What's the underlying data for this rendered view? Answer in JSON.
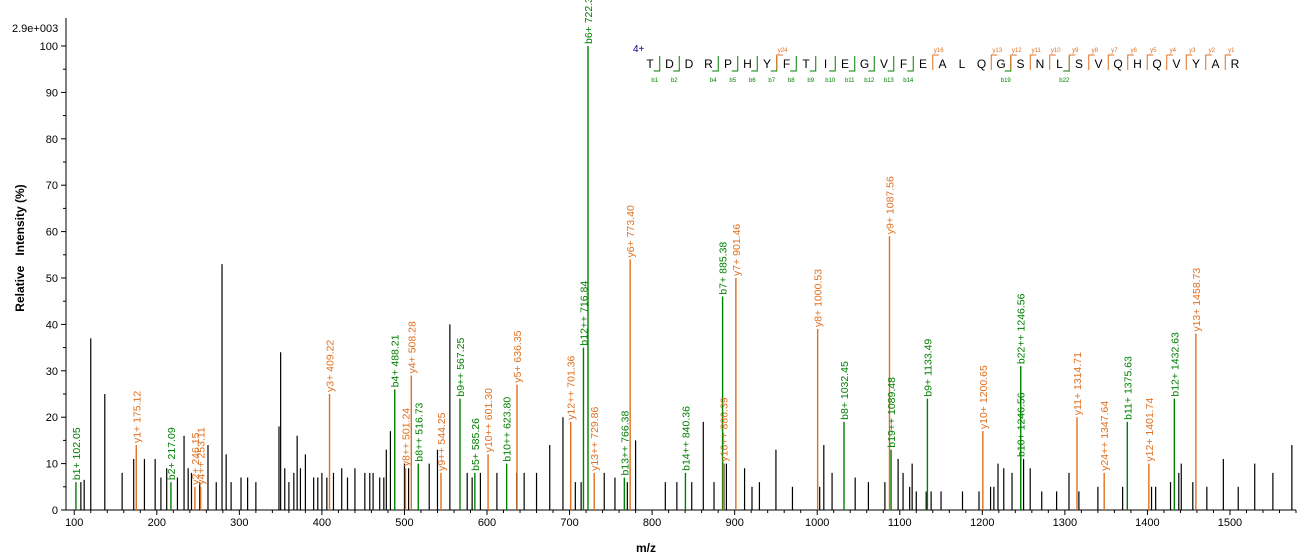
{
  "colors": {
    "b_ion": "#008000",
    "y_ion": "#e07020",
    "unassigned": "#000000",
    "axis": "#000000",
    "charge": "#000080"
  },
  "max_intensity_label": "2.9e+003",
  "chart_data": {
    "type": "bar",
    "xlabel": "m/z",
    "ylabel": "Relative   Intensity (%)",
    "xlim": [
      90,
      1580
    ],
    "ylim": [
      0,
      102
    ],
    "x_ticks": [
      100,
      200,
      300,
      400,
      500,
      600,
      700,
      800,
      900,
      1000,
      1100,
      1200,
      1300,
      1400,
      1500
    ],
    "y_ticks": [
      0,
      10,
      20,
      30,
      40,
      50,
      60,
      70,
      80,
      90,
      100
    ],
    "grid": false,
    "peaks_unassigned": [
      [
        108,
        6
      ],
      [
        112,
        6.5
      ],
      [
        120,
        37
      ],
      [
        137,
        25
      ],
      [
        158,
        8
      ],
      [
        172,
        11
      ],
      [
        185,
        11
      ],
      [
        198,
        11
      ],
      [
        205,
        7
      ],
      [
        212,
        9
      ],
      [
        225,
        7
      ],
      [
        233,
        16
      ],
      [
        238,
        9
      ],
      [
        242,
        8
      ],
      [
        252,
        6
      ],
      [
        262,
        14
      ],
      [
        272,
        6
      ],
      [
        279,
        53
      ],
      [
        284,
        12
      ],
      [
        290,
        6
      ],
      [
        302,
        7
      ],
      [
        310,
        7
      ],
      [
        320,
        6
      ],
      [
        348,
        18
      ],
      [
        350,
        34
      ],
      [
        355,
        9
      ],
      [
        360,
        6
      ],
      [
        366,
        8
      ],
      [
        370,
        16
      ],
      [
        374,
        9
      ],
      [
        380,
        12
      ],
      [
        390,
        7
      ],
      [
        395,
        7
      ],
      [
        400,
        8
      ],
      [
        406,
        7
      ],
      [
        414,
        8
      ],
      [
        424,
        9
      ],
      [
        431,
        7
      ],
      [
        440,
        9
      ],
      [
        452,
        8
      ],
      [
        458,
        8
      ],
      [
        462,
        8
      ],
      [
        470,
        7
      ],
      [
        475,
        7
      ],
      [
        478,
        13
      ],
      [
        483,
        17
      ],
      [
        500,
        10
      ],
      [
        505,
        9
      ],
      [
        530,
        10
      ],
      [
        540,
        13
      ],
      [
        555,
        40
      ],
      [
        576,
        8
      ],
      [
        582,
        7
      ],
      [
        592,
        8
      ],
      [
        612,
        8
      ],
      [
        636,
        8
      ],
      [
        645,
        8
      ],
      [
        660,
        8
      ],
      [
        676,
        14
      ],
      [
        692,
        20
      ],
      [
        707,
        6
      ],
      [
        714,
        6
      ],
      [
        742,
        8
      ],
      [
        755,
        7
      ],
      [
        770,
        6
      ],
      [
        780,
        15
      ],
      [
        816,
        6
      ],
      [
        830,
        6
      ],
      [
        848,
        6
      ],
      [
        862,
        19
      ],
      [
        875,
        6
      ],
      [
        887,
        10
      ],
      [
        890,
        10
      ],
      [
        912,
        9
      ],
      [
        921,
        5
      ],
      [
        930,
        6
      ],
      [
        950,
        13
      ],
      [
        970,
        5
      ],
      [
        1003,
        5
      ],
      [
        1008,
        14
      ],
      [
        1018,
        8
      ],
      [
        1046,
        7
      ],
      [
        1062,
        6
      ],
      [
        1082,
        6
      ],
      [
        1098,
        11
      ],
      [
        1104,
        8
      ],
      [
        1112,
        5
      ],
      [
        1115,
        10
      ],
      [
        1120,
        4
      ],
      [
        1132,
        4
      ],
      [
        1138,
        4
      ],
      [
        1150,
        4
      ],
      [
        1176,
        4
      ],
      [
        1196,
        4
      ],
      [
        1210,
        5
      ],
      [
        1214,
        5
      ],
      [
        1219,
        10
      ],
      [
        1226,
        9
      ],
      [
        1236,
        8
      ],
      [
        1250,
        11
      ],
      [
        1258,
        9
      ],
      [
        1272,
        4
      ],
      [
        1290,
        4
      ],
      [
        1305,
        8
      ],
      [
        1317,
        4
      ],
      [
        1340,
        5
      ],
      [
        1370,
        5
      ],
      [
        1405,
        5
      ],
      [
        1410,
        5
      ],
      [
        1428,
        6
      ],
      [
        1438,
        8
      ],
      [
        1441,
        10
      ],
      [
        1455,
        6
      ],
      [
        1472,
        5
      ],
      [
        1492,
        11
      ],
      [
        1510,
        5
      ],
      [
        1530,
        10
      ],
      [
        1552,
        8
      ],
      [
        1575,
        14
      ]
    ],
    "peaks_annotated": [
      {
        "ion": "b",
        "mz": 102.05,
        "intensity": 6,
        "label": "b1+ 102.05"
      },
      {
        "ion": "y",
        "mz": 175.12,
        "intensity": 14,
        "label": "y1+ 175.12"
      },
      {
        "ion": "b",
        "mz": 217.09,
        "intensity": 6,
        "label": "b2+ 217.09"
      },
      {
        "ion": "y",
        "mz": 246.15,
        "intensity": 5,
        "label": "y2+ 246.15"
      },
      {
        "ion": "y",
        "mz": 253.11,
        "intensity": 5,
        "label": "y4++ 253.11"
      },
      {
        "ion": "y",
        "mz": 409.22,
        "intensity": 25,
        "label": "y3+ 409.22"
      },
      {
        "ion": "b",
        "mz": 488.21,
        "intensity": 26,
        "label": "b4+ 488.21"
      },
      {
        "ion": "y",
        "mz": 501.24,
        "intensity": 9,
        "label": "y8++ 501.24"
      },
      {
        "ion": "y",
        "mz": 508.28,
        "intensity": 29,
        "label": "y4+ 508.28"
      },
      {
        "ion": "b",
        "mz": 516.73,
        "intensity": 10,
        "label": "b8++ 516.73"
      },
      {
        "ion": "y",
        "mz": 544.25,
        "intensity": 8,
        "label": "y9++ 544.25"
      },
      {
        "ion": "b",
        "mz": 567.25,
        "intensity": 24,
        "label": "b9++ 567.25"
      },
      {
        "ion": "b",
        "mz": 585.26,
        "intensity": 8,
        "label": "b5+ 585.26"
      },
      {
        "ion": "y",
        "mz": 601.3,
        "intensity": 12,
        "label": "y10++ 601.30"
      },
      {
        "ion": "b",
        "mz": 623.8,
        "intensity": 10,
        "label": "b10++ 623.80"
      },
      {
        "ion": "y",
        "mz": 636.35,
        "intensity": 27,
        "label": "y5+ 636.35"
      },
      {
        "ion": "y",
        "mz": 701.36,
        "intensity": 19,
        "label": "y12++ 701.36"
      },
      {
        "ion": "b",
        "mz": 716.84,
        "intensity": 35,
        "label": "b12++ 716.84"
      },
      {
        "ion": "b",
        "mz": 722.33,
        "intensity": 100,
        "label": "b6+ 722.33"
      },
      {
        "ion": "y",
        "mz": 729.86,
        "intensity": 8,
        "label": "y13++ 729.86"
      },
      {
        "ion": "b",
        "mz": 766.38,
        "intensity": 7,
        "label": "b13++ 766.38"
      },
      {
        "ion": "y",
        "mz": 773.4,
        "intensity": 54,
        "label": "y6+ 773.40"
      },
      {
        "ion": "b",
        "mz": 840.36,
        "intensity": 8,
        "label": "b14++ 840.36"
      },
      {
        "ion": "b",
        "mz": 885.38,
        "intensity": 46,
        "label": "b7+ 885.38"
      },
      {
        "ion": "y",
        "mz": 886.39,
        "intensity": 10,
        "label": "y16++ 886.39"
      },
      {
        "ion": "y",
        "mz": 901.46,
        "intensity": 50,
        "label": "y7+ 901.46"
      },
      {
        "ion": "y",
        "mz": 1000.53,
        "intensity": 39,
        "label": "y8+ 1000.53"
      },
      {
        "ion": "b",
        "mz": 1032.45,
        "intensity": 19,
        "label": "b8+ 1032.45"
      },
      {
        "ion": "y",
        "mz": 1087.56,
        "intensity": 59,
        "label": "y9+ 1087.56"
      },
      {
        "ion": "b",
        "mz": 1089.48,
        "intensity": 13,
        "label": "b19++ 1089.48"
      },
      {
        "ion": "b",
        "mz": 1133.49,
        "intensity": 24,
        "label": "b9+ 1133.49"
      },
      {
        "ion": "y",
        "mz": 1200.65,
        "intensity": 17,
        "label": "y10+ 1200.65"
      },
      {
        "ion": "b",
        "mz": 1246.56,
        "intensity": 11,
        "label": "b10+ 1246.56"
      },
      {
        "ion": "b",
        "mz": 1246.56,
        "intensity": 31,
        "label": "b22++ 1246.56"
      },
      {
        "ion": "y",
        "mz": 1314.71,
        "intensity": 20,
        "label": "y11+ 1314.71"
      },
      {
        "ion": "y",
        "mz": 1347.64,
        "intensity": 8,
        "label": "y24++ 1347.64"
      },
      {
        "ion": "b",
        "mz": 1375.63,
        "intensity": 19,
        "label": "b11+ 1375.63"
      },
      {
        "ion": "y",
        "mz": 1401.74,
        "intensity": 10,
        "label": "y12+ 1401.74"
      },
      {
        "ion": "b",
        "mz": 1432.63,
        "intensity": 24,
        "label": "b12+ 1432.63"
      },
      {
        "ion": "y",
        "mz": 1458.73,
        "intensity": 38,
        "label": "y13+ 1458.73"
      }
    ]
  },
  "sequence": {
    "charge_label": "4+",
    "residues": [
      "T",
      "D",
      "D",
      "R",
      "P",
      "H",
      "Y",
      "F",
      "T",
      "I",
      "E",
      "G",
      "V",
      "F",
      "E",
      "A",
      "L",
      "Q",
      "G",
      "S",
      "N",
      "L",
      "S",
      "V",
      "Q",
      "H",
      "Q",
      "V",
      "Y",
      "A",
      "R"
    ],
    "b_ions": [
      {
        "after": 1,
        "label": "b1"
      },
      {
        "after": 2,
        "label": "b2"
      },
      {
        "after": 4,
        "label": "b4"
      },
      {
        "after": 5,
        "label": "b5"
      },
      {
        "after": 6,
        "label": "b6"
      },
      {
        "after": 7,
        "label": "b7"
      },
      {
        "after": 8,
        "label": "b8"
      },
      {
        "after": 9,
        "label": "b9"
      },
      {
        "after": 10,
        "label": "b10"
      },
      {
        "after": 11,
        "label": "b11"
      },
      {
        "after": 12,
        "label": "b12"
      },
      {
        "after": 13,
        "label": "b13"
      },
      {
        "after": 14,
        "label": "b14"
      },
      {
        "after": 19,
        "label": "b19"
      },
      {
        "after": 22,
        "label": "b22"
      }
    ],
    "y_ions": [
      {
        "after": 7,
        "label": "y24"
      },
      {
        "after": 15,
        "label": "y16"
      },
      {
        "after": 18,
        "label": "y13"
      },
      {
        "after": 19,
        "label": "y12"
      },
      {
        "after": 20,
        "label": "y11"
      },
      {
        "after": 21,
        "label": "y10"
      },
      {
        "after": 22,
        "label": "y9"
      },
      {
        "after": 23,
        "label": "y8"
      },
      {
        "after": 24,
        "label": "y7"
      },
      {
        "after": 25,
        "label": "y6"
      },
      {
        "after": 26,
        "label": "y5"
      },
      {
        "after": 27,
        "label": "y4"
      },
      {
        "after": 28,
        "label": "y3"
      },
      {
        "after": 29,
        "label": "y2"
      },
      {
        "after": 30,
        "label": "y1"
      }
    ]
  }
}
